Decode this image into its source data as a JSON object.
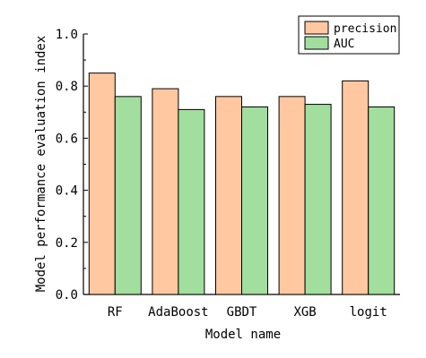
{
  "chart_data": {
    "type": "bar",
    "xlabel": "Model name",
    "ylabel": "Model performance evaluation index",
    "categories": [
      "RF",
      "AdaBoost",
      "GBDT",
      "XGB",
      "logit"
    ],
    "series": [
      {
        "name": "precision",
        "values": [
          0.85,
          0.79,
          0.76,
          0.76,
          0.82
        ],
        "color": "#FFC8A0"
      },
      {
        "name": "AUC",
        "values": [
          0.76,
          0.71,
          0.72,
          0.73,
          0.72
        ],
        "color": "#A2DE9D"
      }
    ],
    "ylim": [
      0,
      1.0
    ],
    "yticks": [
      "0.0",
      "0.2",
      "0.4",
      "0.6",
      "0.8",
      "1.0"
    ],
    "grid": false,
    "legend_position": "top-right"
  }
}
